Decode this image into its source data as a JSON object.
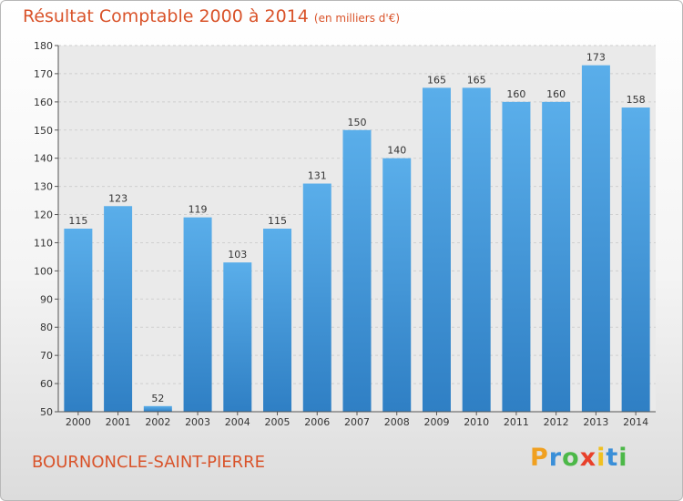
{
  "chart_data": {
    "type": "bar",
    "title": "Résultat Comptable 2000 à 2014",
    "subtitle": "(en milliers d'€)",
    "categories": [
      "2000",
      "2001",
      "2002",
      "2003",
      "2004",
      "2005",
      "2006",
      "2007",
      "2008",
      "2009",
      "2010",
      "2011",
      "2012",
      "2013",
      "2014"
    ],
    "values": [
      115,
      123,
      52,
      119,
      103,
      115,
      131,
      150,
      140,
      165,
      165,
      160,
      160,
      173,
      158
    ],
    "ylim": [
      50,
      180
    ],
    "yticks": [
      50,
      60,
      70,
      80,
      90,
      100,
      110,
      120,
      130,
      140,
      150,
      160,
      170,
      180
    ],
    "grid": true,
    "bar_color_light": "#5aaeea",
    "bar_color_dark": "#2f7fc4"
  },
  "footer": {
    "town": "BOURNONCLE-SAINT-PIERRE"
  },
  "logo": {
    "letters": [
      "P",
      "r",
      "o",
      "x",
      "i",
      "t",
      "i"
    ],
    "colors": [
      "#f0a020",
      "#3a8fd8",
      "#4cb848",
      "#e8402a",
      "#f0c020",
      "#3a8fd8",
      "#4cb848"
    ]
  }
}
